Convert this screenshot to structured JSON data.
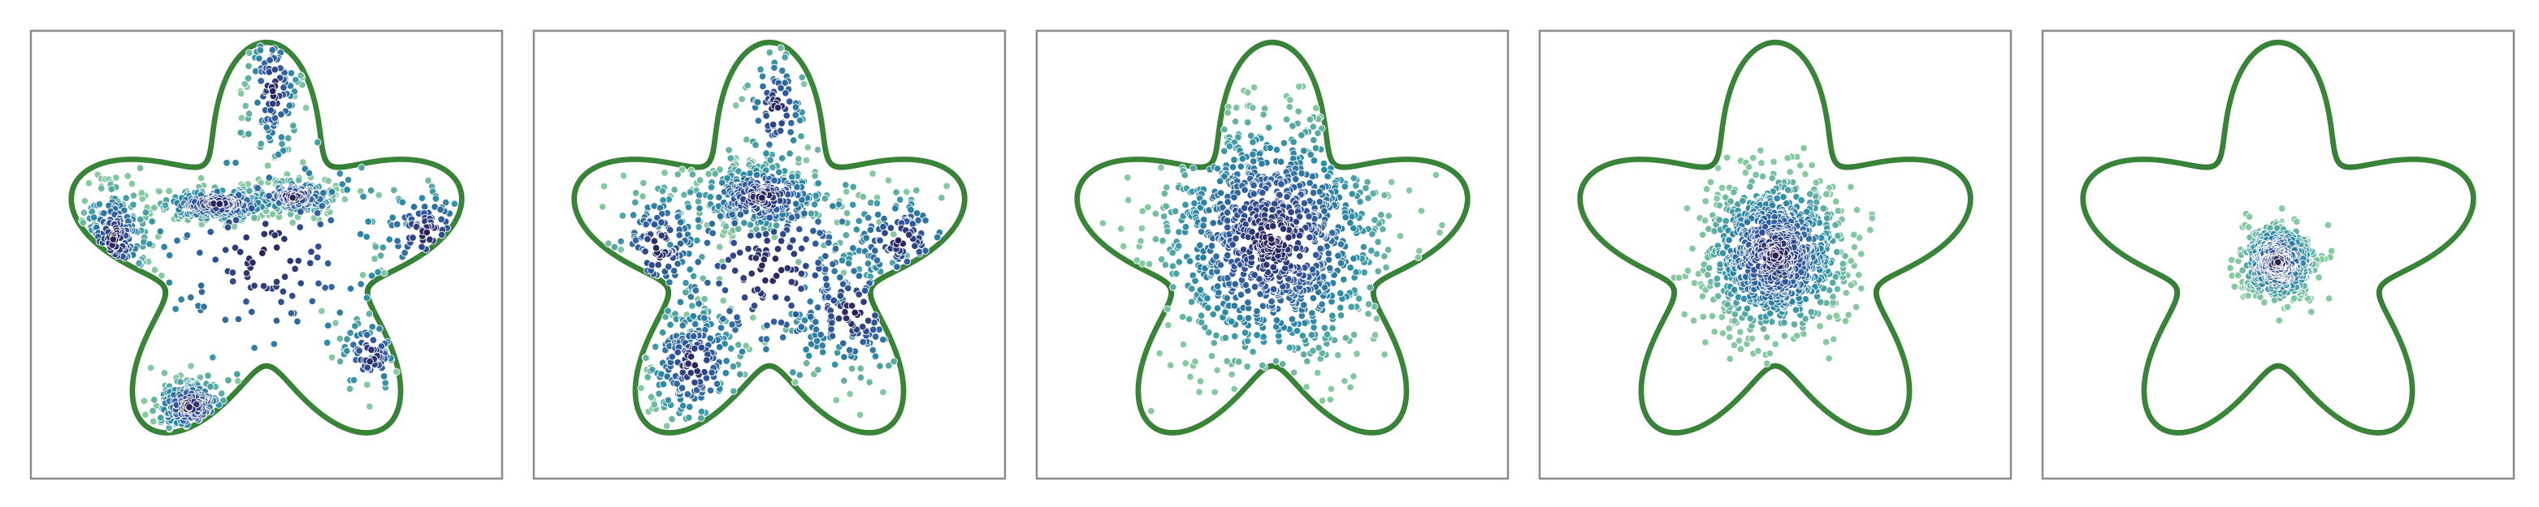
{
  "figure": {
    "description_visible_text": "",
    "panel_count": 5
  },
  "chart_data": [
    {
      "type": "scatter",
      "title": "",
      "xlabel": "",
      "ylabel": "",
      "xlim": [
        -1.7,
        1.7
      ],
      "ylim": [
        -1.55,
        1.55
      ],
      "grid": false,
      "legend": "none",
      "boundary": {
        "shape": "five-lobed star",
        "lobes": 5,
        "color": "#3a8a3a"
      },
      "sample_colormap": [
        "#2b1b4e",
        "#30569a",
        "#2f8fa6",
        "#86c8a0"
      ],
      "clusters": [
        {
          "cx": -0.35,
          "cy": 0.35,
          "sx": 0.22,
          "sy": 0.06,
          "n": 260
        },
        {
          "cx": 0.2,
          "cy": 0.4,
          "sx": 0.15,
          "sy": 0.06,
          "n": 200
        },
        {
          "cx": -0.55,
          "cy": -1.05,
          "sx": 0.14,
          "sy": 0.1,
          "n": 190
        },
        {
          "cx": -1.1,
          "cy": 0.1,
          "sx": 0.12,
          "sy": 0.2,
          "n": 160
        },
        {
          "cx": 0.05,
          "cy": 1.15,
          "sx": 0.1,
          "sy": 0.25,
          "n": 110
        },
        {
          "cx": 0.75,
          "cy": -0.7,
          "sx": 0.12,
          "sy": 0.15,
          "n": 70
        },
        {
          "cx": 1.15,
          "cy": 0.15,
          "sx": 0.2,
          "sy": 0.18,
          "n": 80
        },
        {
          "cx": 0.0,
          "cy": 0.0,
          "sx": 0.55,
          "sy": 0.5,
          "n": 160
        }
      ]
    },
    {
      "type": "scatter",
      "title": "",
      "xlabel": "",
      "ylabel": "",
      "xlim": [
        -1.7,
        1.7
      ],
      "ylim": [
        -1.55,
        1.55
      ],
      "grid": false,
      "legend": "none",
      "boundary": {
        "shape": "five-lobed star",
        "lobes": 5,
        "color": "#3a8a3a"
      },
      "sample_colormap": [
        "#2b1b4e",
        "#30569a",
        "#2f8fa6",
        "#86c8a0"
      ],
      "clusters": [
        {
          "cx": -0.05,
          "cy": 0.4,
          "sx": 0.25,
          "sy": 0.12,
          "n": 300
        },
        {
          "cx": -0.55,
          "cy": -0.75,
          "sx": 0.18,
          "sy": 0.22,
          "n": 200
        },
        {
          "cx": 0.05,
          "cy": 1.0,
          "sx": 0.12,
          "sy": 0.22,
          "n": 90
        },
        {
          "cx": -0.8,
          "cy": 0.05,
          "sx": 0.18,
          "sy": 0.22,
          "n": 140
        },
        {
          "cx": 0.6,
          "cy": -0.4,
          "sx": 0.25,
          "sy": 0.25,
          "n": 150
        },
        {
          "cx": 0.95,
          "cy": 0.1,
          "sx": 0.22,
          "sy": 0.18,
          "n": 110
        },
        {
          "cx": 0.0,
          "cy": -0.1,
          "sx": 0.5,
          "sy": 0.45,
          "n": 230
        }
      ]
    },
    {
      "type": "scatter",
      "title": "",
      "xlabel": "",
      "ylabel": "",
      "xlim": [
        -1.7,
        1.7
      ],
      "ylim": [
        -1.55,
        1.55
      ],
      "grid": false,
      "legend": "none",
      "boundary": {
        "shape": "five-lobed star",
        "lobes": 5,
        "color": "#3a8a3a"
      },
      "sample_colormap": [
        "#2b1b4e",
        "#30569a",
        "#2f8fa6",
        "#86c8a0"
      ],
      "clusters": [
        {
          "cx": 0.0,
          "cy": 0.1,
          "sx": 0.42,
          "sy": 0.45,
          "n": 1100
        }
      ]
    },
    {
      "type": "scatter",
      "title": "",
      "xlabel": "",
      "ylabel": "",
      "xlim": [
        -1.7,
        1.7
      ],
      "ylim": [
        -1.55,
        1.55
      ],
      "grid": false,
      "legend": "none",
      "boundary": {
        "shape": "five-lobed star",
        "lobes": 5,
        "color": "#3a8a3a"
      },
      "sample_colormap": [
        "#2b1b4e",
        "#30569a",
        "#2f8fa6",
        "#86c8a0"
      ],
      "clusters": [
        {
          "cx": 0.0,
          "cy": 0.0,
          "sx": 0.25,
          "sy": 0.27,
          "n": 1000
        }
      ]
    },
    {
      "type": "scatter",
      "title": "",
      "xlabel": "",
      "ylabel": "",
      "xlim": [
        -1.7,
        1.7
      ],
      "ylim": [
        -1.55,
        1.55
      ],
      "grid": false,
      "legend": "none",
      "boundary": {
        "shape": "five-lobed star",
        "lobes": 5,
        "color": "#3a8a3a"
      },
      "sample_colormap": [
        "#2b1b4e",
        "#30569a",
        "#2f8fa6",
        "#86c8a0"
      ],
      "clusters": [
        {
          "cx": 0.0,
          "cy": -0.05,
          "sx": 0.13,
          "sy": 0.13,
          "n": 600
        }
      ]
    }
  ]
}
